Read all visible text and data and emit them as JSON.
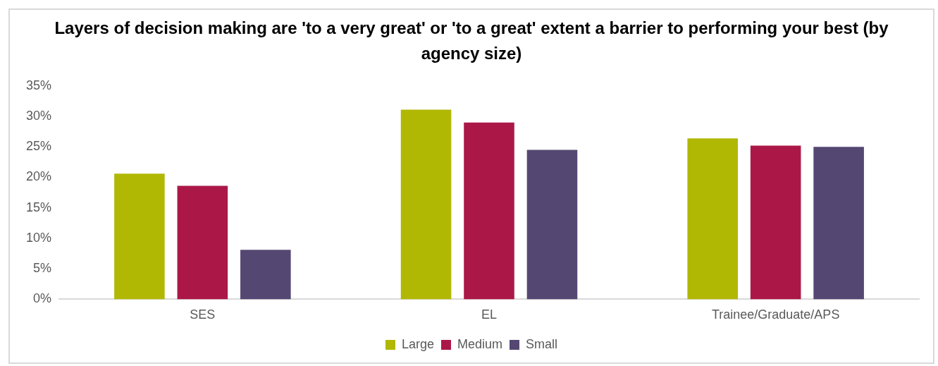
{
  "chart_data": {
    "type": "bar",
    "title": "Layers of decision making are 'to a very great' or 'to a great' extent a barrier to performing your best (by agency size)",
    "categories": [
      "SES",
      "EL",
      "Trainee/Graduate/APS"
    ],
    "series": [
      {
        "name": "Large",
        "color": "#b1b804",
        "values": [
          20.6,
          31.1,
          26.4
        ]
      },
      {
        "name": "Medium",
        "color": "#ab1848",
        "values": [
          18.6,
          29.0,
          25.2
        ]
      },
      {
        "name": "Small",
        "color": "#544873",
        "values": [
          8.1,
          24.5,
          25.0
        ]
      }
    ],
    "ylim": [
      0,
      35
    ],
    "yticks": [
      {
        "value": 0,
        "label": "0%"
      },
      {
        "value": 5,
        "label": "5%"
      },
      {
        "value": 10,
        "label": "10%"
      },
      {
        "value": 15,
        "label": "15%"
      },
      {
        "value": 20,
        "label": "20%"
      },
      {
        "value": 25,
        "label": "25%"
      },
      {
        "value": 30,
        "label": "30%"
      },
      {
        "value": 35,
        "label": "35%"
      }
    ],
    "grid": false,
    "legend": "bottom"
  }
}
